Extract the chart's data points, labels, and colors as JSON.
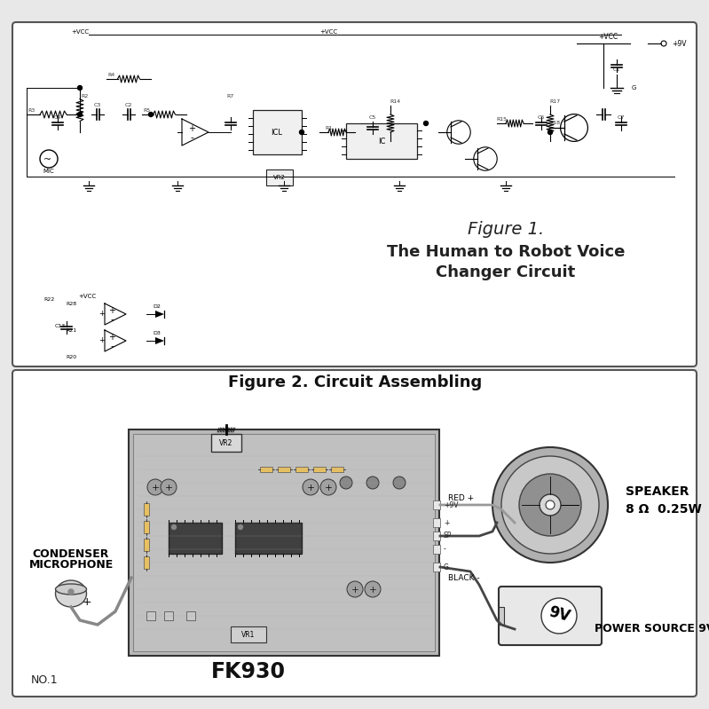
{
  "bg_color": "#f5f5f5",
  "outer_bg": "#e8e8e8",
  "panel1_bg": "#ffffff",
  "panel2_bg": "#ffffff",
  "fig1_title_line1": "Figure 1.",
  "fig1_title_line2": "The Human to Robot Voice",
  "fig1_title_line3": "Changer Circuit",
  "fig2_title": "Figure 2. Circuit Assembling",
  "label_fk930": "FK930",
  "label_no1": "NO.1",
  "label_condenser": "CONDENSER",
  "label_microphone": "MICROPHONE",
  "label_speaker": "SPEAKER",
  "label_speaker_spec": "8 Ω  0.25W",
  "label_power": "POWER SOURCE 9V",
  "label_red": "RED +",
  "label_black": "BLACK -",
  "label_plus9v": "+9V",
  "label_sp": "SP",
  "label_g": "G"
}
